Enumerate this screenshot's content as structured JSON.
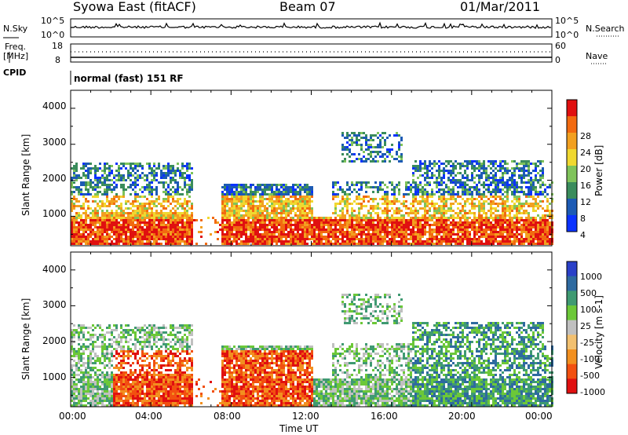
{
  "header": {
    "title": "Syowa East (fitACF)",
    "beam": "Beam 07",
    "date": "01/Mar/2011"
  },
  "housekeeping": {
    "nsky_label": "N.Sky",
    "nsky_ticks": [
      "10^5",
      "10^0"
    ],
    "nsearch_label": "N.Search",
    "nsearch_ticks": [
      "10^5",
      "10^0"
    ],
    "freq_label": "Freq.",
    "freq_unit": "[MHz]",
    "freq_ticks": [
      "18",
      "8"
    ],
    "nave_label": "Nave",
    "nave_ticks": [
      "60",
      "0"
    ],
    "cpid_label": "CPID",
    "cpid_text": "normal (fast) 151 RF"
  },
  "chart_data": [
    {
      "type": "heatmap",
      "name": "power",
      "ylabel": "Slant Range [km]",
      "ylim": [
        180,
        4500
      ],
      "yticks": [
        "1000",
        "2000",
        "3000",
        "4000"
      ],
      "xlim": [
        0,
        24
      ],
      "colorbar": {
        "label": "Power [dB]",
        "ticks": [
          "4",
          "8",
          "12",
          "16",
          "20",
          "24",
          "28"
        ],
        "colors": [
          "#0a32ff",
          "#1c5ab4",
          "#3a8c5c",
          "#7fc35a",
          "#f0d830",
          "#f2a020",
          "#f26a10",
          "#e01010"
        ],
        "range": [
          0,
          32
        ]
      }
    },
    {
      "type": "heatmap",
      "name": "velocity",
      "ylabel": "Slant Range [km]",
      "ylim": [
        180,
        4500
      ],
      "yticks": [
        "1000",
        "2000",
        "3000",
        "4000"
      ],
      "xlim": [
        0,
        24
      ],
      "xticks": [
        "00:00",
        "04:00",
        "08:00",
        "12:00",
        "16:00",
        "20:00",
        "00:00"
      ],
      "xlabel": "Time UT",
      "colorbar": {
        "label": "Velocity [m s-1]",
        "ticks": [
          "1000",
          "500",
          "100",
          "25",
          "-25",
          "-100",
          "-500",
          "-1000"
        ],
        "colors": [
          "#2a40c8",
          "#2e6aa0",
          "#3f9a72",
          "#6cc838",
          "#c0c0c0",
          "#f2c070",
          "#f29020",
          "#f25010",
          "#e01010"
        ]
      }
    }
  ]
}
